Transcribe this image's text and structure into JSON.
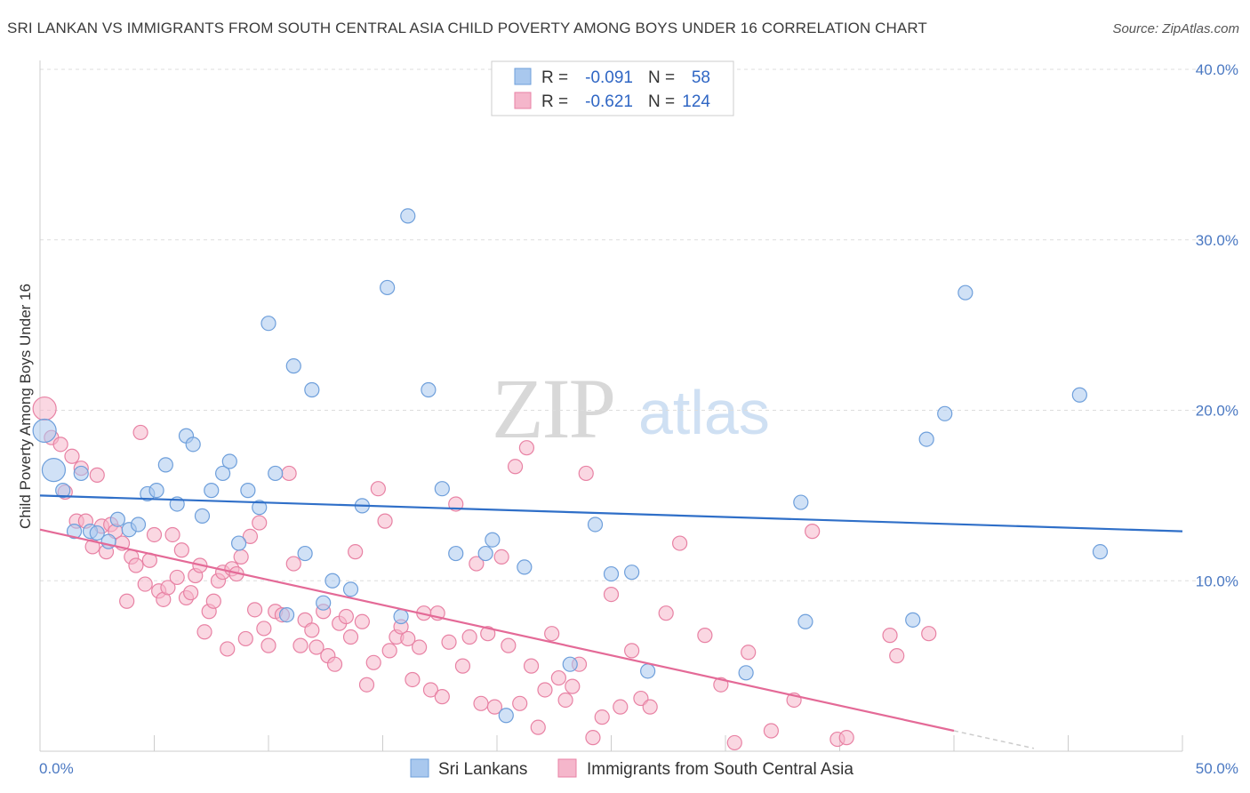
{
  "title": "SRI LANKAN VS IMMIGRANTS FROM SOUTH CENTRAL ASIA CHILD POVERTY AMONG BOYS UNDER 16 CORRELATION CHART",
  "source": "Source: ZipAtlas.com",
  "watermark": {
    "zip": "ZIP",
    "atlas": "atlas"
  },
  "legend_top": {
    "rows": [
      {
        "r_label": "R =",
        "r_value": "-0.091",
        "n_label": "N =",
        "n_value": "58",
        "color": "#a9c8ee"
      },
      {
        "r_label": "R =",
        "r_value": "-0.621",
        "n_label": "N =",
        "n_value": "124",
        "color": "#f5b6cb"
      }
    ]
  },
  "legend_bottom": [
    {
      "label": "Sri Lankans",
      "color": "#a9c8ee"
    },
    {
      "label": "Immigrants from South Central Asia",
      "color": "#f5b6cb"
    }
  ],
  "chart_data": {
    "type": "scatter",
    "title": "SRI LANKAN VS IMMIGRANTS FROM SOUTH CENTRAL ASIA CHILD POVERTY AMONG BOYS UNDER 16 CORRELATION CHART",
    "xlabel": "",
    "ylabel": "Child Poverty Among Boys Under 16",
    "xlim": [
      0,
      50
    ],
    "ylim": [
      0,
      40
    ],
    "x_tick_labels": [
      "0.0%",
      "50.0%"
    ],
    "y_tick_labels": [
      "10.0%",
      "20.0%",
      "30.0%",
      "40.0%"
    ],
    "y_ticks": [
      10,
      20,
      30,
      40
    ],
    "grid": true,
    "colors": {
      "blue_fill": "#a9c8ee",
      "blue_stroke": "#6e9fdb",
      "blue_line": "#2f6fc8",
      "pink_fill": "#f5b6cb",
      "pink_stroke": "#e882a4",
      "pink_line": "#e46a97"
    },
    "series": [
      {
        "name": "Sri Lankans",
        "trend": {
          "x": [
            0,
            50
          ],
          "y": [
            15.0,
            12.9
          ]
        },
        "points": [
          [
            0.2,
            18.8
          ],
          [
            0.6,
            16.5
          ],
          [
            1.0,
            15.3
          ],
          [
            1.5,
            12.9
          ],
          [
            1.8,
            16.3
          ],
          [
            2.2,
            12.9
          ],
          [
            2.5,
            12.8
          ],
          [
            3.0,
            12.3
          ],
          [
            3.4,
            13.6
          ],
          [
            3.9,
            13.0
          ],
          [
            4.3,
            13.3
          ],
          [
            4.7,
            15.1
          ],
          [
            5.1,
            15.3
          ],
          [
            5.5,
            16.8
          ],
          [
            6.0,
            14.5
          ],
          [
            6.4,
            18.5
          ],
          [
            6.7,
            18.0
          ],
          [
            7.1,
            13.8
          ],
          [
            7.5,
            15.3
          ],
          [
            8.0,
            16.3
          ],
          [
            8.3,
            17.0
          ],
          [
            8.7,
            12.2
          ],
          [
            9.1,
            15.3
          ],
          [
            9.6,
            14.3
          ],
          [
            10.0,
            25.1
          ],
          [
            10.3,
            16.3
          ],
          [
            10.8,
            8.0
          ],
          [
            11.1,
            22.6
          ],
          [
            11.6,
            11.6
          ],
          [
            11.9,
            21.2
          ],
          [
            12.4,
            8.7
          ],
          [
            12.8,
            10.0
          ],
          [
            13.6,
            9.5
          ],
          [
            14.1,
            14.4
          ],
          [
            15.2,
            27.2
          ],
          [
            15.8,
            7.9
          ],
          [
            16.1,
            31.4
          ],
          [
            17.0,
            21.2
          ],
          [
            17.6,
            15.4
          ],
          [
            18.2,
            11.6
          ],
          [
            19.5,
            11.6
          ],
          [
            19.8,
            12.4
          ],
          [
            20.4,
            2.1
          ],
          [
            21.2,
            10.8
          ],
          [
            23.2,
            5.1
          ],
          [
            24.3,
            13.3
          ],
          [
            25.0,
            10.4
          ],
          [
            25.9,
            10.5
          ],
          [
            26.6,
            4.7
          ],
          [
            30.9,
            4.6
          ],
          [
            33.3,
            14.6
          ],
          [
            33.5,
            7.6
          ],
          [
            38.2,
            7.7
          ],
          [
            38.8,
            18.3
          ],
          [
            39.6,
            19.8
          ],
          [
            40.5,
            26.9
          ],
          [
            45.5,
            20.9
          ],
          [
            46.4,
            11.7
          ]
        ]
      },
      {
        "name": "Immigrants from South Central Asia",
        "trend": {
          "x": [
            0,
            40
          ],
          "y": [
            13.0,
            1.2
          ]
        },
        "points": [
          [
            0.2,
            20.1
          ],
          [
            0.5,
            18.4
          ],
          [
            0.9,
            18.0
          ],
          [
            1.1,
            15.2
          ],
          [
            1.4,
            17.3
          ],
          [
            1.6,
            13.5
          ],
          [
            1.8,
            16.6
          ],
          [
            2.0,
            13.5
          ],
          [
            2.3,
            12.0
          ],
          [
            2.5,
            16.2
          ],
          [
            2.7,
            13.2
          ],
          [
            2.9,
            11.7
          ],
          [
            3.1,
            13.3
          ],
          [
            3.3,
            12.9
          ],
          [
            3.6,
            12.2
          ],
          [
            3.8,
            8.8
          ],
          [
            4.0,
            11.4
          ],
          [
            4.2,
            10.9
          ],
          [
            4.4,
            18.7
          ],
          [
            4.6,
            9.8
          ],
          [
            4.8,
            11.2
          ],
          [
            5.0,
            12.7
          ],
          [
            5.2,
            9.4
          ],
          [
            5.4,
            8.9
          ],
          [
            5.6,
            9.6
          ],
          [
            5.8,
            12.7
          ],
          [
            6.0,
            10.2
          ],
          [
            6.2,
            11.8
          ],
          [
            6.4,
            9.0
          ],
          [
            6.6,
            9.3
          ],
          [
            6.8,
            10.3
          ],
          [
            7.0,
            10.9
          ],
          [
            7.2,
            7.0
          ],
          [
            7.4,
            8.2
          ],
          [
            7.6,
            8.8
          ],
          [
            7.8,
            10.0
          ],
          [
            8.0,
            10.5
          ],
          [
            8.2,
            6.0
          ],
          [
            8.4,
            10.7
          ],
          [
            8.6,
            10.4
          ],
          [
            8.8,
            11.4
          ],
          [
            9.0,
            6.6
          ],
          [
            9.2,
            12.6
          ],
          [
            9.4,
            8.3
          ],
          [
            9.6,
            13.4
          ],
          [
            9.8,
            7.2
          ],
          [
            10.0,
            6.2
          ],
          [
            10.3,
            8.2
          ],
          [
            10.6,
            8.0
          ],
          [
            10.9,
            16.3
          ],
          [
            11.1,
            11.0
          ],
          [
            11.4,
            6.2
          ],
          [
            11.6,
            7.7
          ],
          [
            11.9,
            7.1
          ],
          [
            12.1,
            6.1
          ],
          [
            12.4,
            8.2
          ],
          [
            12.6,
            5.6
          ],
          [
            12.9,
            5.1
          ],
          [
            13.1,
            7.5
          ],
          [
            13.4,
            7.9
          ],
          [
            13.6,
            6.7
          ],
          [
            13.8,
            11.7
          ],
          [
            14.1,
            7.6
          ],
          [
            14.3,
            3.9
          ],
          [
            14.6,
            5.2
          ],
          [
            14.8,
            15.4
          ],
          [
            15.1,
            13.5
          ],
          [
            15.3,
            5.9
          ],
          [
            15.6,
            6.7
          ],
          [
            15.8,
            7.3
          ],
          [
            16.1,
            6.6
          ],
          [
            16.3,
            4.2
          ],
          [
            16.6,
            6.1
          ],
          [
            16.8,
            8.1
          ],
          [
            17.1,
            3.6
          ],
          [
            17.4,
            8.1
          ],
          [
            17.6,
            3.2
          ],
          [
            17.9,
            6.4
          ],
          [
            18.2,
            14.5
          ],
          [
            18.5,
            5.0
          ],
          [
            18.8,
            6.7
          ],
          [
            19.1,
            11.0
          ],
          [
            19.3,
            2.8
          ],
          [
            19.6,
            6.9
          ],
          [
            19.9,
            2.6
          ],
          [
            20.2,
            11.4
          ],
          [
            20.5,
            6.2
          ],
          [
            20.8,
            16.7
          ],
          [
            21.0,
            2.8
          ],
          [
            21.3,
            17.8
          ],
          [
            21.5,
            5.0
          ],
          [
            21.8,
            1.4
          ],
          [
            22.1,
            3.6
          ],
          [
            22.4,
            6.9
          ],
          [
            22.7,
            4.3
          ],
          [
            23.0,
            3.0
          ],
          [
            23.3,
            3.8
          ],
          [
            23.6,
            5.1
          ],
          [
            23.9,
            16.3
          ],
          [
            24.2,
            0.8
          ],
          [
            24.6,
            2.0
          ],
          [
            25.0,
            9.2
          ],
          [
            25.4,
            2.6
          ],
          [
            25.9,
            5.9
          ],
          [
            26.3,
            3.1
          ],
          [
            26.7,
            2.6
          ],
          [
            27.4,
            8.1
          ],
          [
            28.0,
            12.2
          ],
          [
            29.1,
            6.8
          ],
          [
            29.8,
            3.9
          ],
          [
            30.4,
            0.5
          ],
          [
            31.0,
            5.8
          ],
          [
            32.0,
            1.2
          ],
          [
            33.0,
            3.0
          ],
          [
            33.8,
            12.9
          ],
          [
            34.9,
            0.7
          ],
          [
            35.3,
            0.8
          ],
          [
            37.2,
            6.8
          ],
          [
            37.5,
            5.6
          ],
          [
            38.9,
            6.9
          ]
        ]
      }
    ]
  },
  "axis": {
    "ylabel": "Child Poverty Among Boys Under 16",
    "x_left": "0.0%",
    "x_right": "50.0%",
    "y_ticks": [
      "10.0%",
      "20.0%",
      "30.0%",
      "40.0%"
    ]
  }
}
